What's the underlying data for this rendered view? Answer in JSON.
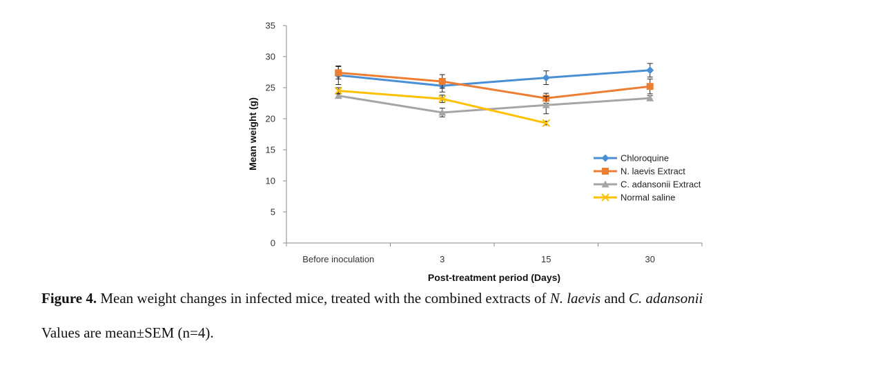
{
  "chart_data": {
    "type": "line",
    "categories": [
      "Before inoculation",
      "3",
      "15",
      "30"
    ],
    "xlabel": "Post-treatment period (Days)",
    "ylabel": "Mean weight (g)",
    "ylim": [
      0,
      35
    ],
    "yticks": [
      "0",
      "5",
      "10",
      "15",
      "20",
      "25",
      "30",
      "35"
    ],
    "grid": false,
    "legend_position": "right",
    "series": [
      {
        "name": "Chloroquine",
        "values": [
          27.0,
          25.3,
          26.6,
          27.8
        ],
        "errors": [
          1.5,
          1.0,
          1.1,
          1.1
        ],
        "color": "#4a8fd3",
        "marker": "diamond"
      },
      {
        "name": "N. laevis Extract",
        "values": [
          27.4,
          26.0,
          23.3,
          25.2
        ],
        "errors": [
          1.0,
          1.1,
          0.8,
          1.2
        ],
        "color": "#ed7d31",
        "marker": "square"
      },
      {
        "name": "C. adansonii Extract",
        "values": [
          23.7,
          21.0,
          22.2,
          23.3
        ],
        "errors": [
          0.4,
          0.7,
          1.4,
          0.4
        ],
        "color": "#a5a5a5",
        "marker": "triangle"
      },
      {
        "name": "Normal saline",
        "values": [
          24.5,
          23.2,
          19.3,
          null
        ],
        "errors": [
          0.5,
          0.6,
          0.3,
          null
        ],
        "color": "#ffc000",
        "marker": "x"
      }
    ]
  },
  "caption": {
    "figure_label": "Figure 4.",
    "text_part1": " Mean weight changes in infected mice, treated with the combined extracts of ",
    "species1": "N. laevis",
    "text_part2": " and ",
    "species2": "C. adansonii",
    "line2": "Values are mean±SEM (n=4)."
  }
}
